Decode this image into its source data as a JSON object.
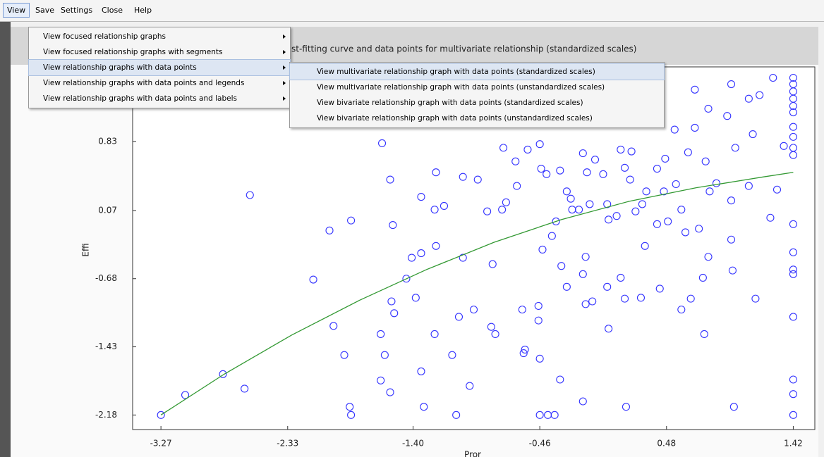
{
  "menu_bar": {
    "items": [
      "View",
      "Save",
      "Settings",
      "Close",
      "Help"
    ]
  },
  "menu": {
    "items": [
      "View focused relationship graphs",
      "View focused relationship graphs with segments",
      "View relationship graphs with data points",
      "View relationship graphs with data points and legends",
      "View relationship graphs with data points and labels"
    ]
  },
  "submenu": {
    "items": [
      "View multivariate relationship graph with data points (standardized scales)",
      "View multivariate relationship graph with data points (unstandardized scales)",
      "View bivariate relationship graph with data points (standardized scales)",
      "View bivariate relationship graph with data points (unstandardized scales)"
    ]
  },
  "chart_data": {
    "type": "scatter",
    "title": "st-fitting curve and data points for multivariate relationship (standardized scales)",
    "x_label": "Pror",
    "y_label": "Effi",
    "xlim": [
      -3.48,
      1.58
    ],
    "ylim": [
      -2.34,
      1.65
    ],
    "xticks": [
      -3.27,
      -2.33,
      {
        "value": -1.4,
        "label": "-1.40"
      },
      -0.46,
      0.48,
      1.42
    ],
    "yticks": [
      -2.18,
      -1.43,
      -0.68,
      0.07,
      0.83
    ],
    "series": [
      {
        "color": "#3333ff",
        "x": [
          -3.27,
          -3.09,
          -2.81,
          -2.65,
          -2.61,
          -2.14,
          -2.02,
          -1.99,
          -1.86,
          -1.91,
          -1.87,
          -1.86,
          -1.64,
          -1.61,
          -1.56,
          -1.54,
          -1.64,
          -1.57,
          -1.63,
          -1.57,
          -1.55,
          -1.45,
          -1.38,
          -1.34,
          -1.34,
          -1.34,
          -1.24,
          -1.23,
          -1.23,
          -1.17,
          -1.24,
          -1.32,
          -1.11,
          -1.08,
          -1.03,
          -1.03,
          -0.95,
          -0.92,
          -0.98,
          -0.82,
          -0.85,
          -0.81,
          -0.74,
          -0.73,
          -0.64,
          -0.63,
          -0.59,
          -0.58,
          -0.55,
          -0.47,
          -0.47,
          -0.46,
          -0.4,
          -0.35,
          -0.46,
          -0.45,
          -0.31,
          -0.26,
          -0.22,
          -0.14,
          -0.11,
          -0.09,
          0.01,
          0.04,
          0.05,
          0.11,
          0.17,
          0.14,
          0.21,
          0.25,
          0.3,
          0.33,
          0.32,
          0.41,
          0.46,
          0.49,
          0.59,
          0.62,
          0.72,
          0.8,
          0.79,
          0.75,
          0.76,
          0.85,
          0.96,
          0.96,
          0.97,
          0.98,
          1.09,
          1.14,
          1.25,
          1.3,
          1.35,
          1.42,
          1.42,
          1.42,
          1.42,
          1.42,
          1.42,
          1.42,
          1.42,
          1.42,
          1.42,
          1.42,
          1.42,
          1.42,
          1.42,
          1.42,
          1.42,
          1.42,
          1.42,
          1.27,
          0.96,
          1.09,
          1.17,
          0.69,
          0.79,
          0.93,
          1.12,
          0.99,
          0.77,
          0.64,
          0.69,
          0.54,
          0.47,
          0.55,
          0.43,
          0.59,
          0.66,
          0.04,
          0.14,
          0.17,
          0.29,
          -0.14,
          -0.07,
          -0.12,
          0.05,
          -0.26,
          -0.3,
          -0.37,
          -0.44,
          -0.12,
          -0.79,
          -1.41,
          -1.06,
          -0.57,
          -0.46,
          -0.31,
          -0.14,
          0.18,
          0.41,
          0.22,
          -0.05,
          -0.34,
          -0.17,
          -0.23,
          -0.41,
          -0.71
        ],
        "y": [
          -2.18,
          -1.96,
          -1.73,
          -1.89,
          0.24,
          -0.69,
          -0.15,
          -1.2,
          -0.04,
          -1.52,
          -2.09,
          -2.18,
          -1.29,
          -1.52,
          -0.93,
          -1.06,
          -1.8,
          -1.93,
          0.81,
          0.41,
          -0.09,
          -0.68,
          -0.89,
          -1.7,
          0.22,
          -0.4,
          0.08,
          0.49,
          -0.32,
          0.12,
          -1.29,
          -2.09,
          -1.52,
          -2.18,
          0.44,
          -0.45,
          -1.02,
          0.41,
          -1.86,
          -1.21,
          0.06,
          -0.52,
          0.08,
          0.76,
          0.61,
          0.34,
          -1.02,
          -1.5,
          0.74,
          -0.98,
          -1.14,
          -2.18,
          -2.18,
          -2.18,
          0.8,
          0.53,
          0.51,
          0.28,
          0.08,
          0.7,
          0.49,
          0.14,
          0.47,
          0.14,
          -0.03,
          0.01,
          0.54,
          0.74,
          0.41,
          0.06,
          0.14,
          0.28,
          -0.32,
          -0.08,
          0.28,
          -0.05,
          0.08,
          -0.17,
          -0.13,
          0.28,
          -0.44,
          -0.67,
          -1.29,
          0.37,
          0.18,
          -0.25,
          -0.59,
          -2.09,
          0.34,
          -0.9,
          -0.01,
          0.3,
          0.78,
          1.53,
          1.46,
          1.38,
          1.3,
          1.22,
          1.15,
          0.99,
          0.88,
          0.76,
          0.68,
          -0.08,
          -0.39,
          -0.58,
          -0.63,
          -1.1,
          -1.79,
          -1.95,
          -2.18,
          1.53,
          1.46,
          1.3,
          1.34,
          1.4,
          1.19,
          1.11,
          0.91,
          0.76,
          0.61,
          0.71,
          0.98,
          0.96,
          0.64,
          0.36,
          -0.79,
          -1.02,
          -0.9,
          -0.77,
          -0.67,
          -0.9,
          -0.89,
          -0.63,
          -0.93,
          -0.96,
          -1.23,
          -0.77,
          -0.54,
          -0.21,
          -0.36,
          -0.44,
          -1.29,
          -0.45,
          -1.1,
          -1.46,
          -1.56,
          -1.79,
          -2.03,
          -2.09,
          0.53,
          0.72,
          0.63,
          -0.05,
          0.08,
          0.2,
          0.47,
          0.16
        ]
      },
      {
        "color": "#339933",
        "line": true,
        "x": [
          -3.27,
          -2.8,
          -2.3,
          -1.8,
          -1.3,
          -0.8,
          -0.3,
          0.2,
          0.7,
          1.2,
          1.42
        ],
        "y": [
          -2.18,
          -1.73,
          -1.3,
          -0.92,
          -0.58,
          -0.28,
          -0.03,
          0.17,
          0.32,
          0.44,
          0.49
        ]
      }
    ]
  }
}
